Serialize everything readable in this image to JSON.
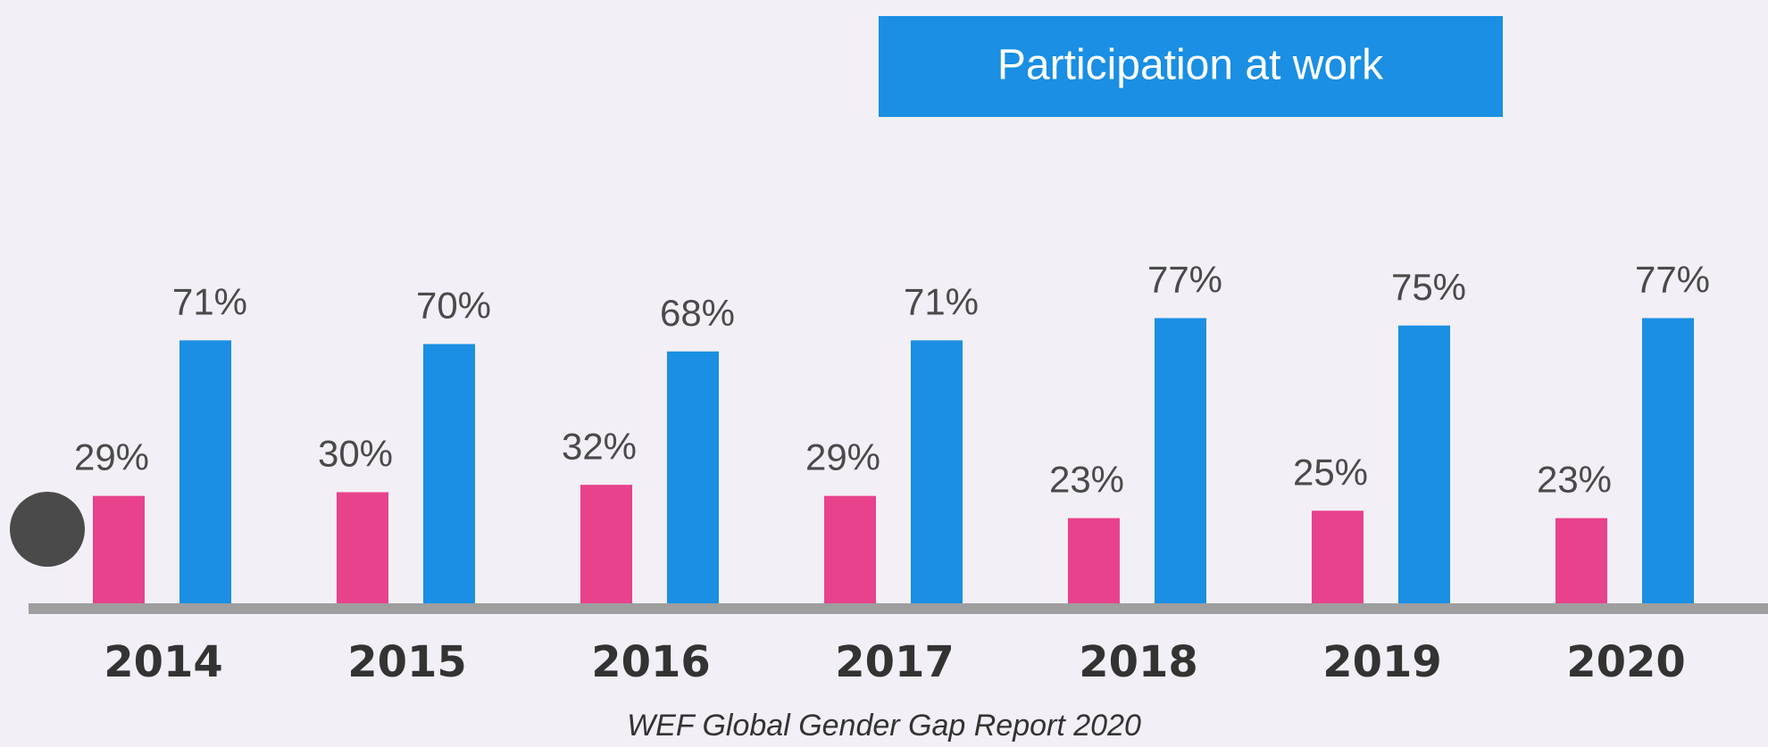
{
  "chart_data": {
    "type": "bar",
    "title": "Participation at work",
    "source": "WEF Global Gender Gap Report 2020",
    "categories": [
      "2014",
      "2015",
      "2016",
      "2017",
      "2018",
      "2019",
      "2020"
    ],
    "series": [
      {
        "color": "#e8428c",
        "values": [
          29,
          30,
          32,
          29,
          23,
          25,
          23
        ],
        "value_labels": [
          "29%",
          "30%",
          "32%",
          "29%",
          "23%",
          "25%",
          "23%"
        ]
      },
      {
        "color": "#1a8fe3",
        "values": [
          71,
          70,
          68,
          71,
          77,
          75,
          77
        ],
        "value_labels": [
          "71%",
          "70%",
          "68%",
          "71%",
          "77%",
          "75%",
          "77%"
        ]
      }
    ]
  }
}
